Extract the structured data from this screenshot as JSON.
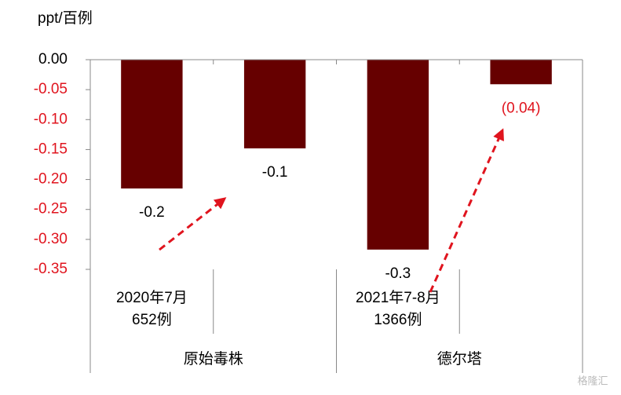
{
  "chart_data": {
    "type": "bar",
    "y_label": "ppt/百例",
    "categories": [
      [
        "2020年7月",
        "652例"
      ],
      null,
      [
        "2021年7-8月",
        "1366例"
      ],
      null
    ],
    "groups": [
      "原始毒株",
      "德尔塔"
    ],
    "values": [
      -0.215,
      -0.148,
      -0.317,
      -0.041
    ],
    "value_labels": [
      "-0.2",
      "-0.1",
      "-0.3",
      "(0.04)"
    ],
    "value_label_colors": [
      "#000000",
      "#000000",
      "#000000",
      "#e0141e"
    ],
    "color": "#660000",
    "ylim": [
      -0.35,
      0
    ],
    "yticks": [
      {
        "value": 0,
        "label": "0.00"
      },
      {
        "value": -0.05,
        "label": "-0.05"
      },
      {
        "value": -0.1,
        "label": "-0.10"
      },
      {
        "value": -0.15,
        "label": "-0.15"
      },
      {
        "value": -0.2,
        "label": "-0.20"
      },
      {
        "value": -0.25,
        "label": "-0.25"
      },
      {
        "value": -0.3,
        "label": "-0.30"
      },
      {
        "value": -0.35,
        "label": "-0.35"
      }
    ],
    "ytick_label_colors": [
      "#000000",
      "#e0141e",
      "#e0141e",
      "#e0141e",
      "#e0141e",
      "#e0141e",
      "#e0141e",
      "#e0141e"
    ],
    "watermark": "格隆汇"
  }
}
